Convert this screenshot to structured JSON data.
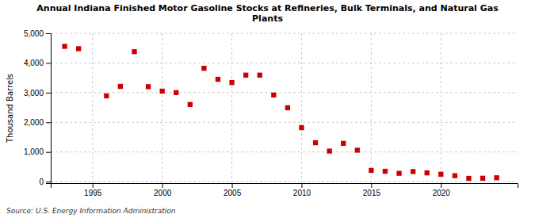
{
  "chart_data": {
    "type": "scatter",
    "title": "Annual Indiana Finished Motor Gasoline Stocks at Refineries, Bulk Terminals, and Natural Gas\nPlants",
    "ylabel": "Thousand Barrels",
    "annotations": [
      "Source: U.S. Energy Information Administration"
    ],
    "color": "#cc0000",
    "marker": "square",
    "grid": true,
    "xlim": [
      1992.0,
      2025.5
    ],
    "ylim": [
      -50,
      5000
    ],
    "xticks": [
      1995,
      2000,
      2005,
      2010,
      2015,
      2020
    ],
    "yticks": [
      0,
      {
        "value": 1000,
        "label": "1,000"
      },
      {
        "value": 2000,
        "label": "2,000"
      },
      {
        "value": 3000,
        "label": "3,000"
      },
      {
        "value": 4000,
        "label": "4,000"
      },
      {
        "value": 5000,
        "label": "5,000"
      }
    ],
    "x": [
      1993,
      1994,
      1996,
      1997,
      1998,
      1999,
      2000,
      2001,
      2002,
      2003,
      2004,
      2005,
      2006,
      2007,
      2008,
      2009,
      2010,
      2011,
      2012,
      2013,
      2014,
      2015,
      2016,
      2017,
      2018,
      2019,
      2020,
      2021,
      2022,
      2023,
      2024
    ],
    "values": [
      4560,
      4480,
      2890,
      3210,
      4380,
      3200,
      3050,
      3000,
      2600,
      3820,
      3450,
      3340,
      3590,
      3590,
      2920,
      2490,
      1820,
      1310,
      1030,
      1290,
      1060,
      380,
      350,
      280,
      340,
      295,
      250,
      200,
      110,
      115,
      130
    ]
  }
}
